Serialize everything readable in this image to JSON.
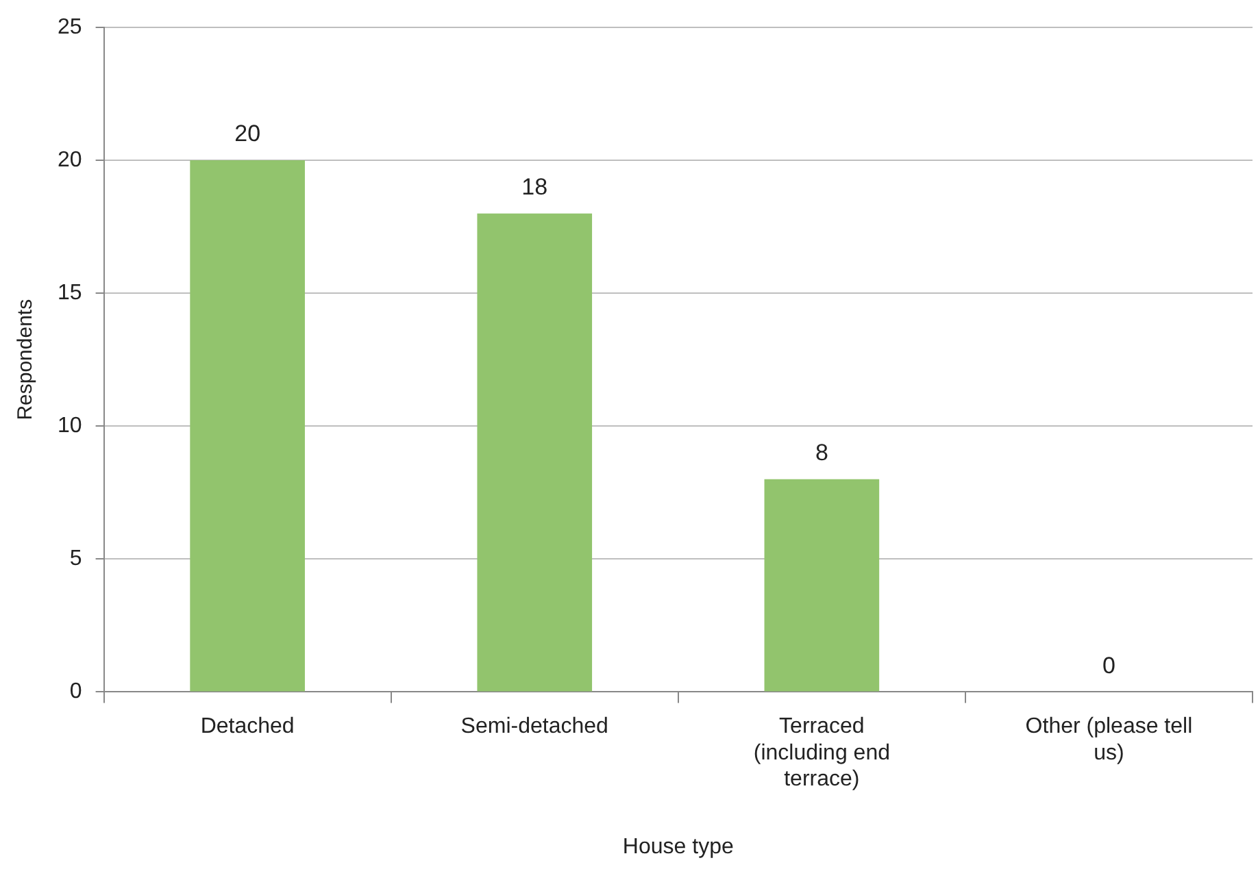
{
  "chart_data": {
    "type": "bar",
    "xlabel": "House type",
    "ylabel": "Respondents",
    "categories": [
      "Detached",
      "Semi-detached",
      "Terraced (including end terrace)",
      "Other (please tell us)"
    ],
    "values": [
      20,
      18,
      8,
      0
    ],
    "color": "#92c46d",
    "ylim": [
      0,
      25
    ],
    "yticks": [
      0,
      5,
      10,
      15,
      20,
      25
    ],
    "grid": "y",
    "legend": false,
    "data_labels": true
  }
}
